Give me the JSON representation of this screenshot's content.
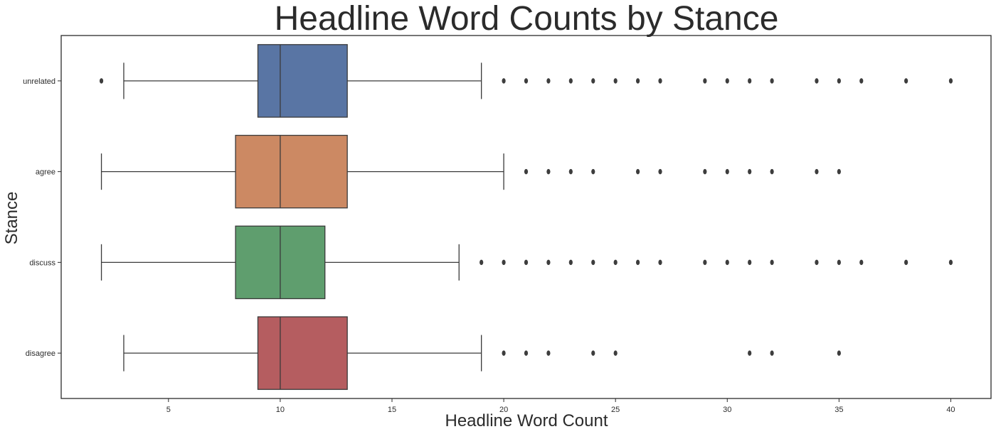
{
  "chart_data": {
    "type": "boxplot",
    "orientation": "horizontal",
    "title": "Headline Word Counts by Stance",
    "xlabel": "Headline Word Count",
    "ylabel": "Stance",
    "xlim": [
      0.2,
      41.8
    ],
    "xticks": [
      5,
      10,
      15,
      20,
      25,
      30,
      35,
      40
    ],
    "grid": false,
    "categories": [
      "unrelated",
      "agree",
      "discuss",
      "disagree"
    ],
    "series": [
      {
        "category": "unrelated",
        "color": "#5975a4",
        "whislo": 3,
        "q1": 9,
        "median": 10,
        "q3": 13,
        "whishi": 19,
        "fliers": [
          2,
          20,
          21,
          22,
          23,
          24,
          25,
          26,
          27,
          29,
          30,
          31,
          32,
          34,
          35,
          36,
          38,
          40
        ]
      },
      {
        "category": "agree",
        "color": "#cc8963",
        "whislo": 2,
        "q1": 8,
        "median": 10,
        "q3": 13,
        "whishi": 20,
        "fliers": [
          21,
          22,
          23,
          24,
          26,
          27,
          29,
          30,
          31,
          32,
          34,
          35
        ]
      },
      {
        "category": "discuss",
        "color": "#5f9e6e",
        "whislo": 2,
        "q1": 8,
        "median": 10,
        "q3": 12,
        "whishi": 18,
        "fliers": [
          19,
          20,
          21,
          22,
          23,
          24,
          25,
          26,
          27,
          29,
          30,
          31,
          32,
          34,
          35,
          36,
          38,
          40
        ]
      },
      {
        "category": "disagree",
        "color": "#b55d60",
        "whislo": 3,
        "q1": 9,
        "median": 10,
        "q3": 13,
        "whishi": 19,
        "fliers": [
          20,
          21,
          22,
          24,
          25,
          31,
          32,
          35
        ]
      }
    ]
  }
}
